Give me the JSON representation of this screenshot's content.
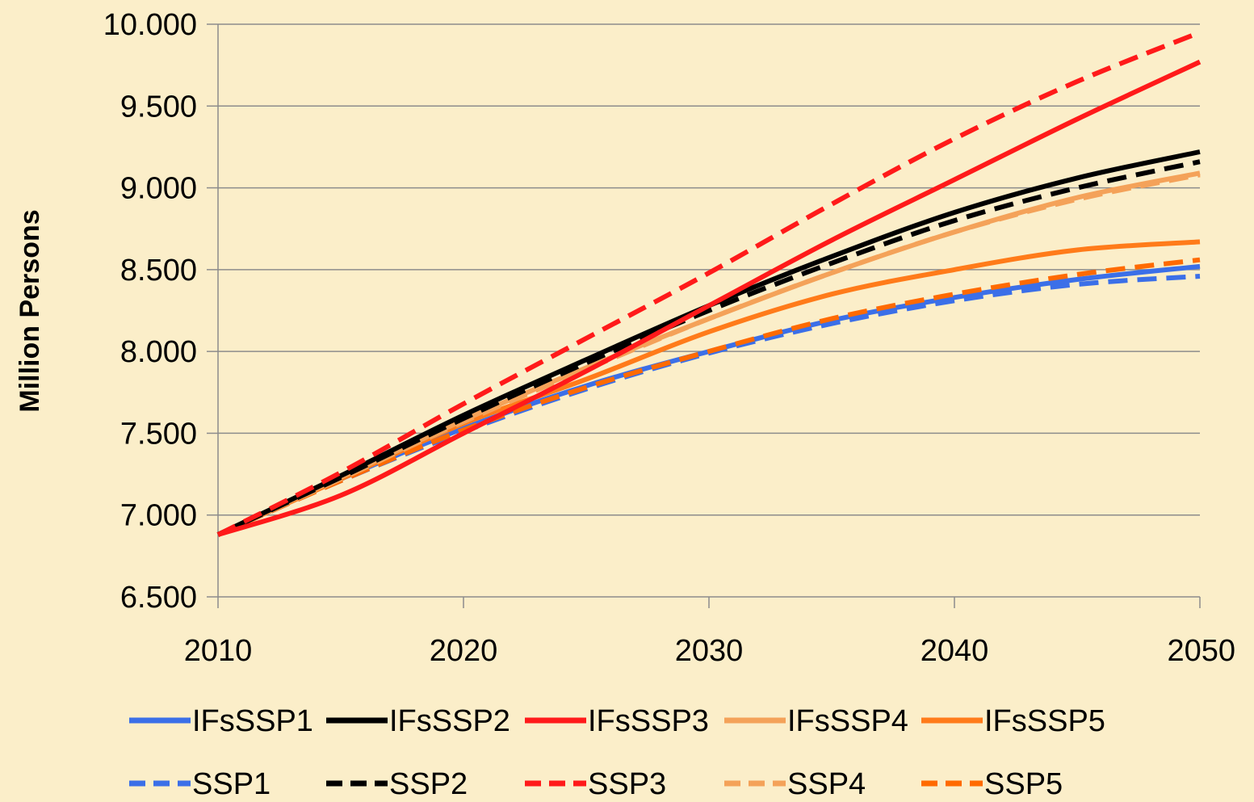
{
  "chart_data": {
    "type": "line",
    "title": "",
    "xlabel": "",
    "ylabel": "Million Persons",
    "x": [
      2010,
      2015,
      2020,
      2025,
      2030,
      2035,
      2040,
      2045,
      2050
    ],
    "xlim": [
      2010,
      2050
    ],
    "ylim": [
      6500,
      10000
    ],
    "x_ticks": [
      2010,
      2020,
      2030,
      2040,
      2050
    ],
    "x_tick_labels": [
      "2010",
      "2020",
      "2030",
      "2040",
      "2050"
    ],
    "y_ticks": [
      6500,
      7000,
      7500,
      8000,
      8500,
      9000,
      9500,
      10000
    ],
    "y_tick_labels": [
      "6.500",
      "7.000",
      "7.500",
      "8.000",
      "8.500",
      "9.000",
      "9.500",
      "10.000"
    ],
    "grid": "horizontal",
    "legend_position": "bottom",
    "series": [
      {
        "name": "IFsSSP1",
        "color": "#3b6fe8",
        "dash": false,
        "values": [
          6880,
          7220,
          7530,
          7790,
          8000,
          8190,
          8330,
          8440,
          8520
        ]
      },
      {
        "name": "IFsSSP2",
        "color": "#000000",
        "dash": false,
        "values": [
          6880,
          7240,
          7610,
          7950,
          8280,
          8580,
          8850,
          9060,
          9220
        ]
      },
      {
        "name": "IFsSSP3",
        "color": "#ff1a1a",
        "dash": false,
        "values": [
          6880,
          7120,
          7500,
          7880,
          8280,
          8680,
          9050,
          9420,
          9770
        ]
      },
      {
        "name": "IFsSSP4",
        "color": "#f4a259",
        "dash": false,
        "values": [
          6880,
          7230,
          7580,
          7900,
          8200,
          8480,
          8730,
          8940,
          9090
        ]
      },
      {
        "name": "IFsSSP5",
        "color": "#ff7b1a",
        "dash": false,
        "values": [
          6880,
          7220,
          7560,
          7830,
          8120,
          8350,
          8500,
          8620,
          8670
        ]
      },
      {
        "name": "SSP1",
        "color": "#3b6fe8",
        "dash": true,
        "values": [
          6880,
          7210,
          7510,
          7770,
          7990,
          8170,
          8310,
          8410,
          8460
        ]
      },
      {
        "name": "SSP2",
        "color": "#000000",
        "dash": true,
        "values": [
          6880,
          7230,
          7590,
          7930,
          8250,
          8540,
          8800,
          9000,
          9160
        ]
      },
      {
        "name": "SSP3",
        "color": "#ff1a1a",
        "dash": true,
        "values": [
          6880,
          7260,
          7680,
          8080,
          8480,
          8900,
          9300,
          9650,
          9950
        ]
      },
      {
        "name": "SSP4",
        "color": "#f4a259",
        "dash": true,
        "values": [
          6880,
          7220,
          7570,
          7890,
          8200,
          8480,
          8730,
          8930,
          9080
        ]
      },
      {
        "name": "SSP5",
        "color": "#ff6a00",
        "dash": true,
        "values": [
          6880,
          7210,
          7520,
          7780,
          8000,
          8200,
          8350,
          8470,
          8560
        ]
      }
    ]
  }
}
